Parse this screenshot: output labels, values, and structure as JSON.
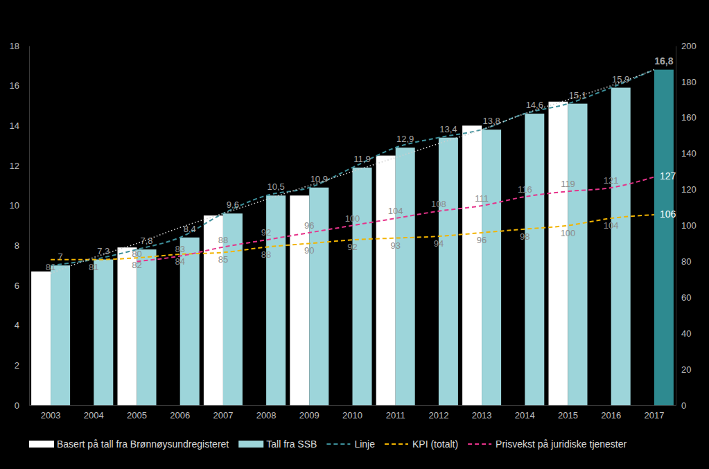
{
  "chart_data": {
    "type": "bar",
    "categories": [
      "2003",
      "2004",
      "2005",
      "2006",
      "2007",
      "2008",
      "2009",
      "2010",
      "2011",
      "2012",
      "2013",
      "2014",
      "2015",
      "2016",
      "2017"
    ],
    "ylim": [
      0,
      18
    ],
    "yticks": [
      0,
      2,
      4,
      6,
      8,
      10,
      12,
      14,
      16,
      18
    ],
    "y2lim": [
      0,
      200
    ],
    "y2ticks": [
      0,
      20,
      40,
      60,
      80,
      100,
      120,
      140,
      160,
      180,
      200
    ],
    "legend": "bottom",
    "series": [
      {
        "name": "Basert på tall fra Brønnøysundregisteret",
        "type": "bar",
        "color": "#ffffff",
        "values": [
          6.7,
          null,
          7.9,
          null,
          9.5,
          null,
          10.5,
          null,
          12.5,
          null,
          14.0,
          null,
          15.2,
          null,
          null
        ]
      },
      {
        "name": "Tall fra SSB",
        "type": "bar",
        "color": "#9dd5da",
        "colors": [
          "#9dd5da",
          "#9dd5da",
          "#9dd5da",
          "#9dd5da",
          "#9dd5da",
          "#9dd5da",
          "#9dd5da",
          "#9dd5da",
          "#9dd5da",
          "#9dd5da",
          "#9dd5da",
          "#9dd5da",
          "#9dd5da",
          "#9dd5da",
          "#2e8a90"
        ],
        "values": [
          7,
          7.3,
          7.8,
          8.4,
          9.6,
          10.5,
          10.9,
          11.9,
          12.9,
          13.4,
          13.8,
          14.6,
          15.1,
          15.9,
          16.8
        ],
        "value_labels": [
          "7",
          "7,3",
          "7,8",
          "8,4",
          "9,6",
          "10,5",
          "10,9",
          "11,9",
          "12,9",
          "13,4",
          "13,8",
          "14,6",
          "15,1",
          "15,9",
          "16,8"
        ],
        "data_labels": true
      },
      {
        "name": "Linje",
        "type": "line",
        "line_style": "dashed",
        "color": "#3d8f9a",
        "values": [
          7,
          7.3,
          7.8,
          8.4,
          9.6,
          10.5,
          10.9,
          11.9,
          12.9,
          13.4,
          13.8,
          14.6,
          15.1,
          15.9,
          16.8
        ]
      },
      {
        "name": "KPI (totalt)",
        "type": "line",
        "line_style": "dashed",
        "color": "#f2b400",
        "axis": "y2",
        "values": [
          81,
          81,
          82,
          84,
          85,
          88,
          90,
          92,
          93,
          94,
          96,
          98,
          100,
          104,
          106
        ],
        "data_labels": true
      },
      {
        "name": "Prisvekst på juridiske tjenester",
        "type": "line",
        "line_style": "dashed",
        "color": "#e6338a",
        "axis": "y2",
        "values": [
          null,
          null,
          80,
          83,
          88,
          92,
          96,
          100,
          104,
          108,
          111,
          116,
          119,
          121,
          127
        ],
        "data_labels": true
      },
      {
        "type": "line",
        "line_style": "dotted",
        "color": "#cfcfcf",
        "values": [
          6.6,
          7.4,
          8.1,
          8.9,
          9.6,
          10.3,
          11.0,
          11.7,
          12.4,
          13.1,
          13.8,
          14.6,
          15.3,
          16.0,
          16.8
        ]
      }
    ]
  }
}
